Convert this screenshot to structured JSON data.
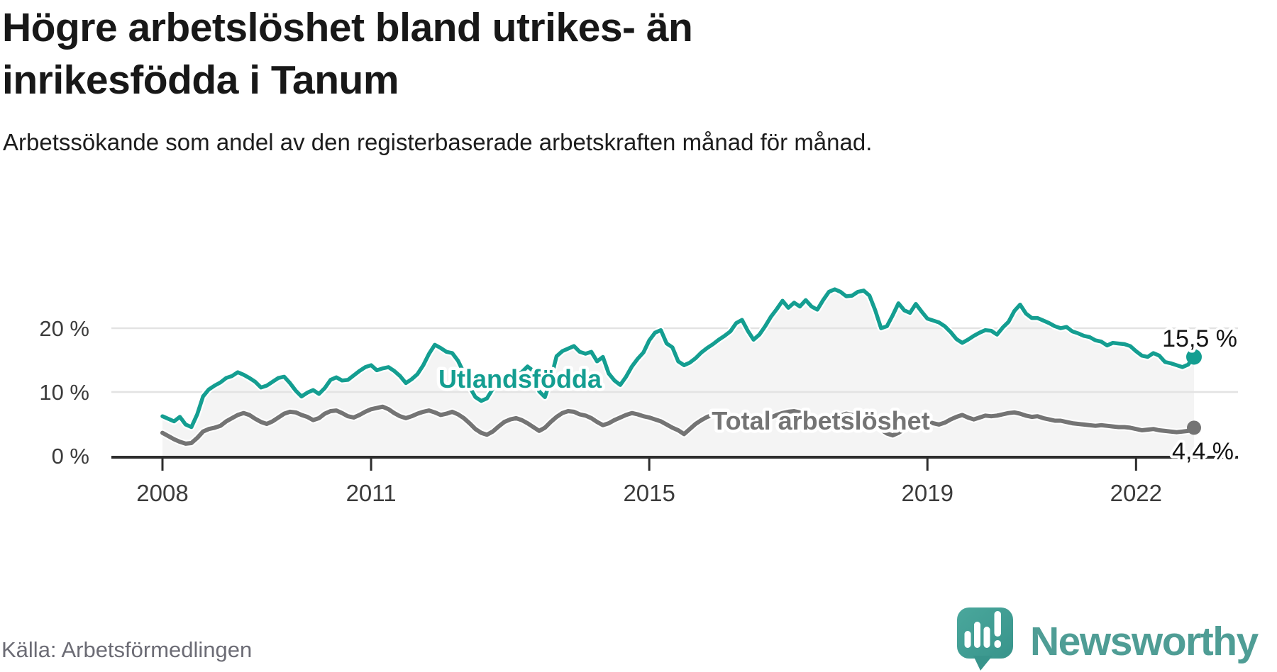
{
  "header": {
    "title": "Högre arbetslöshet bland utrikes- än inrikesfödda i Tanum",
    "subtitle": "Arbetssökande som andel av den registerbaserade arbetskraften månad för månad."
  },
  "footer": {
    "source": "Källa: Arbetsförmedlingen",
    "logo_text": "Newsworthy"
  },
  "colors": {
    "foreign_born_line": "#149e91",
    "total_line": "#747474",
    "area_fill": "#f4f4f4",
    "gridline": "#e3e3e3",
    "axis": "#2d2d2d",
    "logo_bubble": "#3f9a91",
    "logo_wordmark": "#4f9d95"
  },
  "chart_data": {
    "type": "line",
    "title": "Högre arbetslöshet bland utrikes- än inrikesfödda i Tanum",
    "subtitle": "Arbetssökande som andel av den registerbaserade arbetskraften månad för månad.",
    "unit": "%",
    "frequency": "monthly",
    "x_start": "2008-01",
    "x_end": "2022-11",
    "x_tick_labels": [
      "2008",
      "2011",
      "2015",
      "2019",
      "2022"
    ],
    "y_ticks": [
      0,
      10,
      20
    ],
    "y_tick_labels": [
      "0 %",
      "10 %",
      "20 %"
    ],
    "ylim": [
      0,
      30
    ],
    "grid": "horizontal",
    "legend_position": "inline-labels",
    "series": [
      {
        "name": "Utlandsfödda",
        "color": "#149e91",
        "end_label": "15,5 %",
        "end_value": 15.5,
        "values": [
          6.2,
          5.8,
          5.4,
          6.1,
          4.9,
          4.5,
          6.5,
          9.3,
          10.4,
          11.0,
          11.5,
          12.2,
          12.5,
          13.1,
          12.7,
          12.2,
          11.6,
          10.7,
          11.0,
          11.6,
          12.2,
          12.4,
          11.4,
          10.2,
          9.3,
          9.9,
          10.3,
          9.7,
          10.6,
          11.9,
          12.3,
          11.8,
          11.9,
          12.6,
          13.3,
          13.9,
          14.2,
          13.4,
          13.7,
          13.9,
          13.3,
          12.5,
          11.4,
          12.0,
          12.8,
          14.2,
          16.0,
          17.4,
          16.9,
          16.3,
          16.1,
          14.9,
          13.0,
          10.8,
          9.2,
          8.6,
          9.0,
          10.5,
          11.5,
          12.0,
          12.1,
          12.4,
          13.1,
          14.0,
          13.3,
          10.1,
          9.2,
          12.0,
          15.6,
          16.4,
          16.8,
          17.2,
          16.3,
          16.0,
          16.3,
          14.8,
          15.5,
          12.9,
          11.8,
          11.1,
          12.4,
          14.0,
          15.2,
          16.2,
          18.1,
          19.3,
          19.7,
          17.6,
          17.0,
          14.8,
          14.2,
          14.6,
          15.3,
          16.2,
          16.9,
          17.5,
          18.2,
          18.8,
          19.5,
          20.8,
          21.3,
          19.6,
          18.2,
          19.0,
          20.3,
          21.8,
          23.0,
          24.3,
          23.2,
          24.0,
          23.4,
          24.4,
          23.4,
          22.9,
          24.4,
          25.7,
          26.1,
          25.7,
          25.0,
          25.1,
          25.7,
          25.9,
          25.1,
          22.8,
          20.0,
          20.3,
          22.0,
          23.9,
          22.8,
          22.4,
          23.8,
          22.6,
          21.5,
          21.2,
          20.9,
          20.3,
          19.4,
          18.3,
          17.7,
          18.2,
          18.8,
          19.3,
          19.7,
          19.6,
          19.0,
          20.1,
          21.0,
          22.7,
          23.7,
          22.3,
          21.6,
          21.6,
          21.2,
          20.8,
          20.3,
          20.0,
          20.2,
          19.5,
          19.2,
          18.8,
          18.6,
          18.1,
          17.9,
          17.3,
          17.7,
          17.6,
          17.5,
          17.2,
          16.4,
          15.7,
          15.5,
          16.1,
          15.7,
          14.7,
          14.5,
          14.2,
          13.9,
          14.3,
          15.5
        ]
      },
      {
        "name": "Total arbetslöshet",
        "color": "#747474",
        "end_label": "4,4 %",
        "end_value": 4.4,
        "values": [
          3.6,
          3.1,
          2.6,
          2.2,
          1.9,
          2.0,
          2.8,
          3.8,
          4.2,
          4.4,
          4.7,
          5.4,
          5.9,
          6.4,
          6.7,
          6.4,
          5.8,
          5.3,
          5.0,
          5.4,
          6.0,
          6.6,
          6.9,
          6.8,
          6.4,
          6.1,
          5.6,
          5.9,
          6.6,
          7.0,
          7.1,
          6.7,
          6.2,
          6.0,
          6.4,
          6.9,
          7.3,
          7.5,
          7.7,
          7.3,
          6.7,
          6.2,
          5.9,
          6.2,
          6.6,
          6.9,
          7.1,
          6.8,
          6.4,
          6.6,
          6.9,
          6.5,
          5.9,
          5.1,
          4.2,
          3.6,
          3.3,
          3.8,
          4.6,
          5.3,
          5.7,
          5.9,
          5.6,
          5.1,
          4.5,
          3.9,
          4.4,
          5.3,
          6.1,
          6.7,
          7.0,
          6.9,
          6.5,
          6.3,
          5.9,
          5.3,
          4.8,
          5.1,
          5.6,
          6.0,
          6.4,
          6.7,
          6.5,
          6.2,
          6.0,
          5.7,
          5.4,
          4.9,
          4.4,
          4.0,
          3.4,
          4.2,
          5.0,
          5.6,
          6.1,
          6.4,
          6.6,
          6.5,
          6.2,
          5.8,
          5.3,
          4.8,
          4.4,
          4.9,
          5.5,
          6.0,
          6.4,
          6.7,
          6.9,
          7.0,
          6.8,
          6.4,
          5.9,
          5.4,
          5.0,
          5.5,
          6.0,
          6.3,
          6.6,
          6.4,
          6.1,
          5.8,
          5.4,
          4.8,
          4.1,
          3.5,
          3.2,
          3.6,
          4.2,
          4.8,
          5.3,
          5.6,
          5.4,
          5.1,
          4.9,
          5.2,
          5.7,
          6.1,
          6.4,
          6.0,
          5.7,
          6.0,
          6.3,
          6.2,
          6.3,
          6.5,
          6.7,
          6.8,
          6.6,
          6.3,
          6.1,
          6.2,
          5.9,
          5.7,
          5.5,
          5.5,
          5.3,
          5.1,
          5.0,
          4.9,
          4.8,
          4.7,
          4.8,
          4.7,
          4.6,
          4.5,
          4.5,
          4.4,
          4.2,
          4.0,
          4.1,
          4.2,
          4.0,
          3.9,
          3.8,
          3.7,
          3.8,
          3.9,
          4.4
        ]
      }
    ]
  }
}
